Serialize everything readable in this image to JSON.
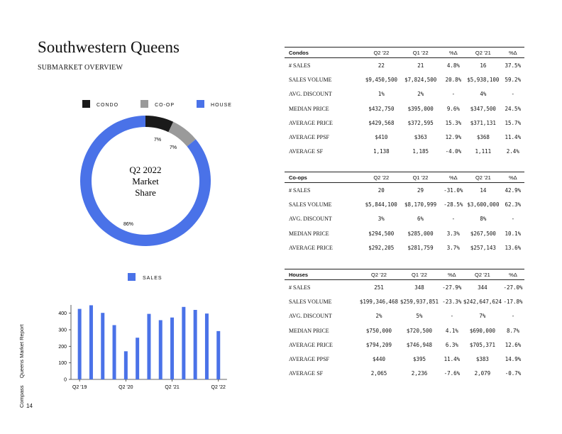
{
  "header": {
    "title": "Southwestern Queens",
    "subtitle": "SUBMARKET OVERVIEW"
  },
  "colors": {
    "condo": "#1a1a1a",
    "coop": "#9a9a9a",
    "house": "#4a72e8",
    "sales": "#4a72e8"
  },
  "donut": {
    "legend": [
      "CONDO",
      "CO-OP",
      "HOUSE"
    ],
    "center": [
      "Q2 2022",
      "Market",
      "Share"
    ],
    "slices": [
      {
        "name": "CONDO",
        "pct": 7,
        "label": "7%"
      },
      {
        "name": "CO-OP",
        "pct": 7,
        "label": "7%"
      },
      {
        "name": "HOUSE",
        "pct": 86,
        "label": "86%"
      }
    ]
  },
  "chart_data": {
    "type": "bar",
    "series": [
      {
        "name": "SALES",
        "values": [
          426,
          448,
          402,
          328,
          170,
          252,
          396,
          358,
          374,
          438,
          420,
          398,
          292
        ]
      }
    ],
    "tick_labels": [
      "Q2 '19",
      "Q2 '20",
      "Q2 '21",
      "Q2 '22"
    ],
    "ylim": [
      0,
      450
    ],
    "yticks": [
      0,
      100,
      200,
      300,
      400
    ],
    "legend": "top-center"
  },
  "side": {
    "company": "Compass",
    "report": "Queens Market Report"
  },
  "page_number": "14",
  "tables": [
    {
      "name": "Condos",
      "cols": [
        "Q2 '22",
        "Q1 '22",
        "%Δ",
        "Q2 '21",
        "%Δ"
      ],
      "rows": [
        [
          "# SALES",
          "22",
          "21",
          "4.8%",
          "16",
          "37.5%"
        ],
        [
          "SALES VOLUME",
          "$9,450,500",
          "$7,824,500",
          "20.8%",
          "$5,938,100",
          "59.2%"
        ],
        [
          "AVG. DISCOUNT",
          "1%",
          "2%",
          "-",
          "4%",
          "-"
        ],
        [
          "MEDIAN PRICE",
          "$432,750",
          "$395,000",
          "9.6%",
          "$347,500",
          "24.5%"
        ],
        [
          "AVERAGE PRICE",
          "$429,568",
          "$372,595",
          "15.3%",
          "$371,131",
          "15.7%"
        ],
        [
          "AVERAGE PPSF",
          "$410",
          "$363",
          "12.9%",
          "$368",
          "11.4%"
        ],
        [
          "AVERAGE SF",
          "1,138",
          "1,185",
          "-4.0%",
          "1,111",
          "2.4%"
        ]
      ]
    },
    {
      "name": "Co-ops",
      "cols": [
        "Q2 '22",
        "Q1 '22",
        "%Δ",
        "Q2 '21",
        "%Δ"
      ],
      "rows": [
        [
          "# SALES",
          "20",
          "29",
          "-31.0%",
          "14",
          "42.9%"
        ],
        [
          "SALES VOLUME",
          "$5,844,100",
          "$8,170,999",
          "-28.5%",
          "$3,600,000",
          "62.3%"
        ],
        [
          "AVG. DISCOUNT",
          "3%",
          "6%",
          "-",
          "8%",
          "-"
        ],
        [
          "MEDIAN PRICE",
          "$294,500",
          "$285,000",
          "3.3%",
          "$267,500",
          "10.1%"
        ],
        [
          "AVERAGE PRICE",
          "$292,205",
          "$281,759",
          "3.7%",
          "$257,143",
          "13.6%"
        ]
      ]
    },
    {
      "name": "Houses",
      "cols": [
        "Q2 '22",
        "Q1 '22",
        "%Δ",
        "Q2 '21",
        "%Δ"
      ],
      "rows": [
        [
          "# SALES",
          "251",
          "348",
          "-27.9%",
          "344",
          "-27.0%"
        ],
        [
          "SALES VOLUME",
          "$199,346,468",
          "$259,937,851",
          "-23.3%",
          "$242,647,624",
          "-17.8%"
        ],
        [
          "AVG. DISCOUNT",
          "2%",
          "5%",
          "-",
          "7%",
          "-"
        ],
        [
          "MEDIAN PRICE",
          "$750,000",
          "$720,500",
          "4.1%",
          "$690,000",
          "8.7%"
        ],
        [
          "AVERAGE PRICE",
          "$794,209",
          "$746,948",
          "6.3%",
          "$705,371",
          "12.6%"
        ],
        [
          "AVERAGE PPSF",
          "$440",
          "$395",
          "11.4%",
          "$383",
          "14.9%"
        ],
        [
          "AVERAGE SF",
          "2,065",
          "2,236",
          "-7.6%",
          "2,079",
          "-0.7%"
        ]
      ]
    }
  ]
}
